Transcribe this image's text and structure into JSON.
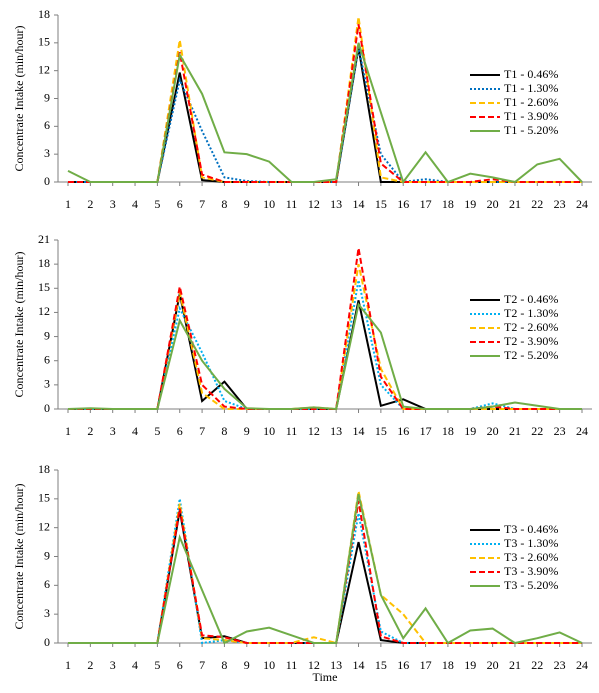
{
  "chart_data": [
    {
      "type": "line",
      "ylabel": "Concentrate Intake (min/hour)",
      "x": [
        1,
        2,
        3,
        4,
        5,
        6,
        7,
        8,
        9,
        10,
        11,
        12,
        13,
        14,
        15,
        16,
        17,
        18,
        19,
        20,
        21,
        22,
        23,
        24
      ],
      "xlim": [
        1,
        24
      ],
      "xticks": [
        1,
        2,
        3,
        4,
        5,
        6,
        7,
        8,
        9,
        10,
        11,
        12,
        13,
        14,
        15,
        16,
        17,
        18,
        19,
        20,
        21,
        22,
        23,
        24
      ],
      "ylim": [
        0,
        18
      ],
      "yticks": [
        0,
        3,
        6,
        9,
        12,
        15,
        18
      ],
      "legend": "right",
      "series": [
        {
          "name": "T1 - 0.46%",
          "color": "#000000",
          "linestyle": "solid",
          "values": [
            0,
            0,
            0,
            0,
            0,
            11.8,
            0.2,
            0,
            0,
            0,
            0,
            0,
            0,
            14.5,
            0,
            0,
            0,
            0,
            0,
            0,
            0,
            0,
            0,
            0
          ]
        },
        {
          "name": "T1 - 1.30%",
          "color": "#0070c0",
          "linestyle": "dotted",
          "values": [
            0,
            0,
            0,
            0,
            0,
            11,
            5.5,
            0.5,
            0.1,
            0,
            0,
            0,
            0,
            14.5,
            3,
            0,
            0.3,
            0,
            0,
            0,
            0,
            0,
            0,
            0
          ]
        },
        {
          "name": "T1 - 2.60%",
          "color": "#ffc000",
          "linestyle": "dashed",
          "values": [
            0,
            0,
            0,
            0,
            0,
            15.3,
            0.5,
            0,
            0,
            0,
            0,
            0,
            0,
            17.8,
            0.5,
            0,
            0,
            0,
            0,
            0,
            0,
            0,
            0,
            0
          ]
        },
        {
          "name": "T1 - 3.90%",
          "color": "#ff0000",
          "linestyle": "dashed",
          "values": [
            0,
            0,
            0,
            0,
            0,
            14,
            0.8,
            0,
            0,
            0,
            0,
            0,
            0,
            17,
            2,
            0,
            0,
            0,
            0,
            0.3,
            0,
            0,
            0,
            0
          ]
        },
        {
          "name": "T1 - 5.20%",
          "color": "#70ad47",
          "linestyle": "solid",
          "values": [
            1.2,
            0,
            0,
            0,
            0,
            13.7,
            9.5,
            3.2,
            3,
            2.2,
            0,
            0,
            0.3,
            15,
            7.5,
            0,
            3.2,
            0,
            0.9,
            0.5,
            0,
            1.9,
            2.5,
            0
          ]
        }
      ]
    },
    {
      "type": "line",
      "ylabel": "Concentrate Intake (min/hour)",
      "x": [
        1,
        2,
        3,
        4,
        5,
        6,
        7,
        8,
        9,
        10,
        11,
        12,
        13,
        14,
        15,
        16,
        17,
        18,
        19,
        20,
        21,
        22,
        23,
        24
      ],
      "xlim": [
        1,
        24
      ],
      "xticks": [
        1,
        2,
        3,
        4,
        5,
        6,
        7,
        8,
        9,
        10,
        11,
        12,
        13,
        14,
        15,
        16,
        17,
        18,
        19,
        20,
        21,
        22,
        23,
        24
      ],
      "ylim": [
        0,
        21
      ],
      "yticks": [
        0,
        3,
        6,
        9,
        12,
        15,
        18,
        21
      ],
      "legend": "right",
      "series": [
        {
          "name": "T2 - 0.46%",
          "color": "#000000",
          "linestyle": "solid",
          "values": [
            0,
            0,
            0,
            0,
            0,
            14.3,
            1,
            3.4,
            0,
            0,
            0,
            0,
            0,
            13.5,
            0.4,
            1.2,
            0,
            0,
            0,
            0,
            0,
            0,
            0,
            0
          ]
        },
        {
          "name": "T2 - 1.30%",
          "color": "#00b0f0",
          "linestyle": "dotted",
          "values": [
            0,
            0,
            0,
            0,
            0,
            12.5,
            7,
            1,
            0,
            0,
            0,
            0,
            0,
            16,
            3,
            0,
            0,
            0,
            0,
            0.7,
            0,
            0,
            0,
            0
          ]
        },
        {
          "name": "T2 - 2.60%",
          "color": "#ffc000",
          "linestyle": "dashed",
          "values": [
            0,
            0,
            0,
            0,
            0,
            14.5,
            2,
            0,
            0,
            0,
            0,
            0.2,
            0,
            18,
            5,
            0,
            0,
            0,
            0,
            0,
            0,
            0,
            0,
            0
          ]
        },
        {
          "name": "T2 - 3.90%",
          "color": "#ff0000",
          "linestyle": "dashed",
          "values": [
            0,
            0,
            0,
            0,
            0,
            15.2,
            3,
            0.3,
            0,
            0,
            0,
            0,
            0,
            20,
            4,
            0,
            0,
            0,
            0,
            0.3,
            0,
            0,
            0,
            0
          ]
        },
        {
          "name": "T2 - 5.20%",
          "color": "#70ad47",
          "linestyle": "solid",
          "values": [
            0,
            0.1,
            0,
            0,
            0,
            11,
            6,
            2.5,
            0.1,
            0,
            0,
            0.2,
            0,
            13,
            9.5,
            0.3,
            0,
            0,
            0,
            0.3,
            0.8,
            0.4,
            0,
            0
          ]
        }
      ]
    },
    {
      "type": "line",
      "ylabel": "Concentrate Intake (min/hour)",
      "xlabel": "Time",
      "x": [
        1,
        2,
        3,
        4,
        5,
        6,
        7,
        8,
        9,
        10,
        11,
        12,
        13,
        14,
        15,
        16,
        17,
        18,
        19,
        20,
        21,
        22,
        23,
        24
      ],
      "xlim": [
        1,
        24
      ],
      "xticks": [
        1,
        2,
        3,
        4,
        5,
        6,
        7,
        8,
        9,
        10,
        11,
        12,
        13,
        14,
        15,
        16,
        17,
        18,
        19,
        20,
        21,
        22,
        23,
        24
      ],
      "ylim": [
        0,
        18
      ],
      "yticks": [
        0,
        3,
        6,
        9,
        12,
        15,
        18
      ],
      "legend": "right",
      "series": [
        {
          "name": "T3 - 0.46%",
          "color": "#000000",
          "linestyle": "solid",
          "values": [
            0,
            0,
            0,
            0,
            0,
            13.8,
            0.5,
            0.7,
            0,
            0,
            0,
            0,
            0,
            10.5,
            0.3,
            0,
            0,
            0,
            0,
            0,
            0,
            0,
            0,
            0
          ]
        },
        {
          "name": "T3 - 1.30%",
          "color": "#00b0f0",
          "linestyle": "dotted",
          "values": [
            0,
            0,
            0,
            0,
            0,
            15,
            0,
            0.3,
            0,
            0,
            0,
            0,
            0,
            13.5,
            1.2,
            0,
            0,
            0,
            0,
            0,
            0,
            0,
            0,
            0
          ]
        },
        {
          "name": "T3 - 2.60%",
          "color": "#ffc000",
          "linestyle": "dashed",
          "values": [
            0,
            0,
            0,
            0,
            0,
            14.5,
            0.5,
            0.3,
            0,
            0,
            0,
            0.6,
            0,
            15.8,
            5,
            3,
            0,
            0,
            0,
            0,
            0,
            0,
            0,
            0
          ]
        },
        {
          "name": "T3 - 3.90%",
          "color": "#ff0000",
          "linestyle": "dashed",
          "values": [
            0,
            0,
            0,
            0,
            0,
            14,
            0.8,
            0.6,
            0,
            0,
            0,
            0,
            0,
            14.8,
            0.7,
            0,
            0,
            0,
            0,
            0,
            0,
            0,
            0,
            0
          ]
        },
        {
          "name": "T3 - 5.20%",
          "color": "#70ad47",
          "linestyle": "solid",
          "values": [
            0,
            0,
            0,
            0,
            0,
            11,
            5.5,
            0,
            1.2,
            1.6,
            0.8,
            0,
            0,
            15.5,
            5,
            0.5,
            3.6,
            0,
            1.3,
            1.5,
            0,
            0.5,
            1.1,
            0
          ]
        }
      ]
    }
  ]
}
